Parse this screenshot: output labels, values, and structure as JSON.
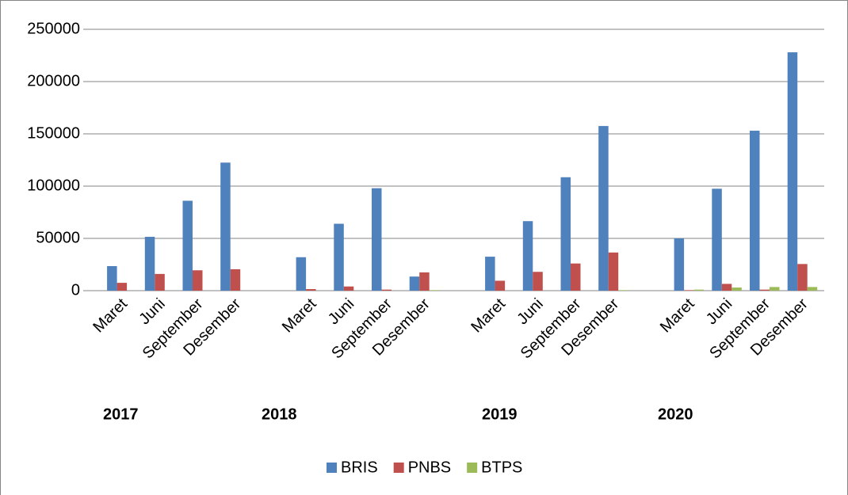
{
  "chart_data": {
    "type": "bar",
    "categories": [
      "Maret",
      "Juni",
      "September",
      "Desember",
      null,
      "Maret",
      "Juni",
      "September",
      "Desember",
      null,
      "Maret",
      "Juni",
      "September",
      "Desember",
      null,
      "Maret",
      "Juni",
      "September",
      "Desember"
    ],
    "groups": [
      "2017",
      "2018",
      "2019",
      "2020"
    ],
    "series": [
      {
        "name": "BRIS",
        "color": "#4f81bd",
        "values": [
          23500,
          51500,
          86000,
          122500,
          null,
          32000,
          64000,
          98000,
          13500,
          null,
          32500,
          66500,
          108500,
          157500,
          null,
          50000,
          97500,
          153000,
          228000
        ]
      },
      {
        "name": "PNBS",
        "color": "#c0504d",
        "values": [
          7500,
          16000,
          19500,
          20500,
          null,
          1500,
          4000,
          1000,
          17500,
          null,
          9500,
          18000,
          26000,
          36500,
          null,
          500,
          6500,
          1000,
          25500
        ]
      },
      {
        "name": "BTPS",
        "color": "#9bbb59",
        "values": [
          0,
          0,
          0,
          0,
          null,
          0,
          0,
          0,
          500,
          null,
          0,
          0,
          0,
          500,
          null,
          1000,
          3000,
          3500,
          3500
        ]
      }
    ],
    "ylim": [
      0,
      250000
    ],
    "yticks": [
      0,
      50000,
      100000,
      150000,
      200000,
      250000
    ],
    "grid": true,
    "legend": "bottom"
  }
}
